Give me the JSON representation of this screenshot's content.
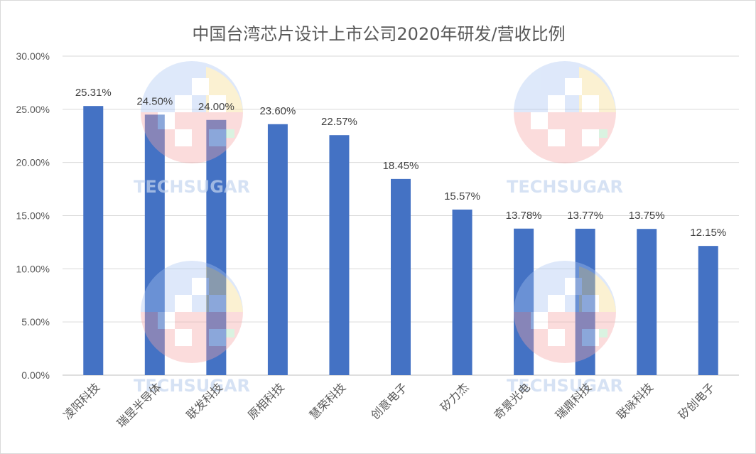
{
  "chart_data": {
    "type": "bar",
    "title": "中国台湾芯片设计上市公司2020年研发/营收比例",
    "xlabel": "",
    "ylabel": "",
    "categories": [
      "凌阳科技",
      "瑞昱半导体",
      "联发科技",
      "原相科技",
      "慧荣科技",
      "创意电子",
      "矽力杰",
      "奇景光电",
      "瑞鼎科技",
      "联咏科技",
      "矽创电子"
    ],
    "values": [
      25.31,
      24.5,
      24.0,
      23.6,
      22.57,
      18.45,
      15.57,
      13.78,
      13.77,
      13.75,
      12.15
    ],
    "data_labels": [
      "25.31%",
      "24.50%",
      "24.00%",
      "23.60%",
      "22.57%",
      "18.45%",
      "15.57%",
      "13.78%",
      "13.77%",
      "13.75%",
      "12.15%"
    ],
    "ylim": [
      0,
      30
    ],
    "yticks": [
      0,
      5,
      10,
      15,
      20,
      25,
      30
    ],
    "ytick_labels": [
      "0.00%",
      "5.00%",
      "10.00%",
      "15.00%",
      "20.00%",
      "25.00%",
      "30.00%"
    ],
    "grid": true,
    "legend": "none",
    "bar_color": "#4472c4"
  },
  "watermark": {
    "text": "TECHSUGAR"
  }
}
